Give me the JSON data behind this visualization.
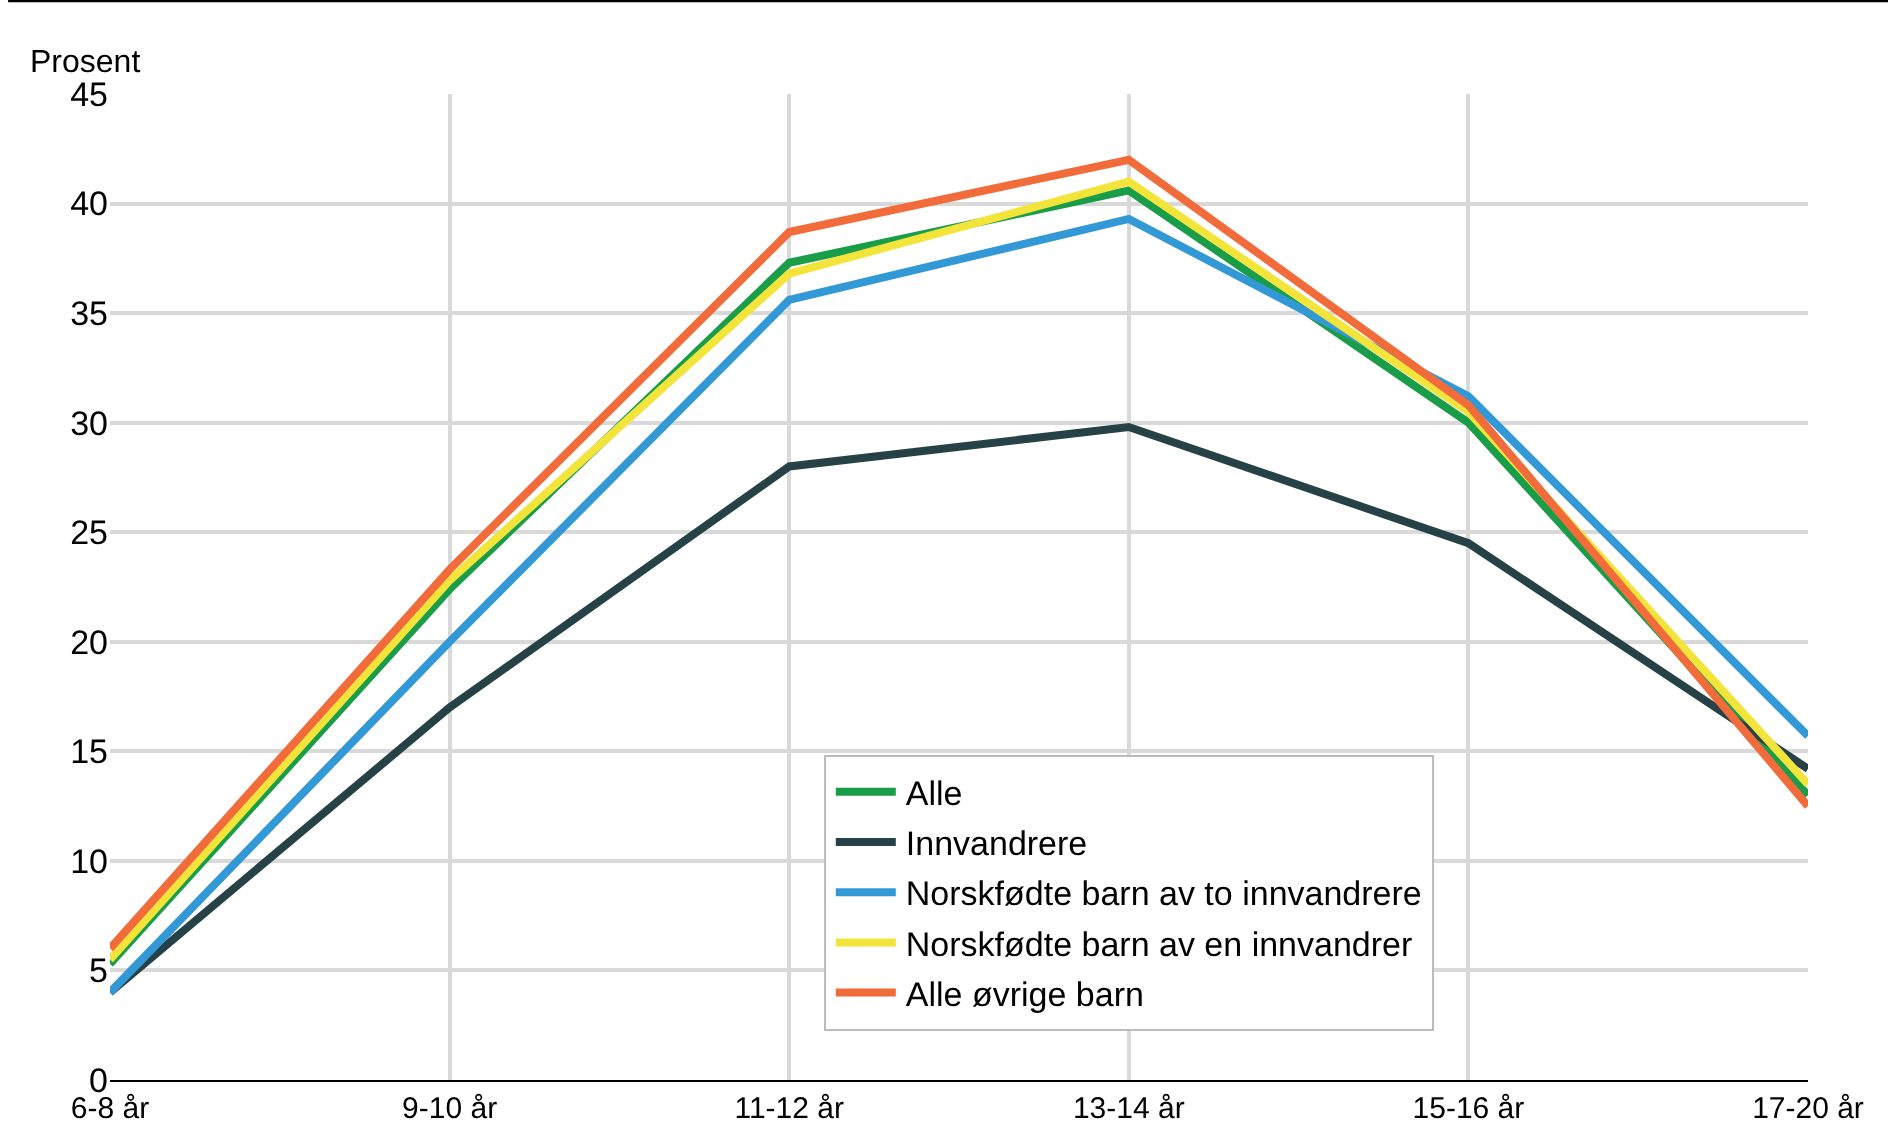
{
  "chart_data": {
    "type": "line",
    "ylabel": "Prosent",
    "categories": [
      "6-8 år",
      "9-10 år",
      "11-12 år",
      "13-14 år",
      "15-16 år",
      "17-20 år"
    ],
    "series": [
      {
        "name": "Alle",
        "color": "#1a9d49",
        "values": [
          5.3,
          22.4,
          37.3,
          40.6,
          30.0,
          13.0
        ]
      },
      {
        "name": "Innvandrere",
        "color": "#274247",
        "values": [
          4.0,
          17.0,
          28.0,
          29.8,
          24.5,
          14.2
        ]
      },
      {
        "name": "Norskfødte barn av to innvandrere",
        "color": "#3399d6",
        "values": [
          4.0,
          20.0,
          35.6,
          39.3,
          31.2,
          15.7
        ]
      },
      {
        "name": "Norskfødte barn av en innvandrer",
        "color": "#f2e43b",
        "values": [
          5.5,
          22.8,
          36.8,
          41.0,
          30.5,
          13.5
        ]
      },
      {
        "name": "Alle øvrige barn",
        "color": "#f26b3a",
        "values": [
          6.0,
          23.3,
          38.7,
          42.0,
          30.8,
          12.5
        ]
      }
    ],
    "ylim": [
      0,
      45
    ],
    "yticks": [
      0,
      5,
      10,
      15,
      20,
      25,
      30,
      35,
      40,
      45
    ],
    "grid": true,
    "legend": "bottom",
    "marker": "none",
    "line_style": "solid"
  }
}
